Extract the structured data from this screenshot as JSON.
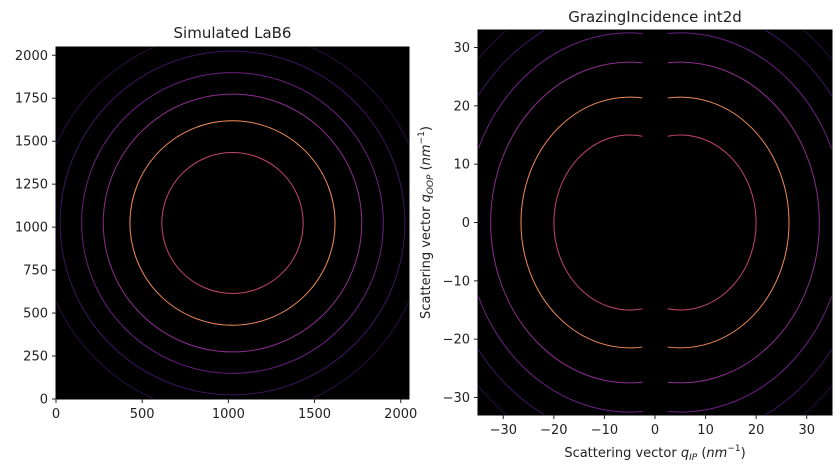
{
  "chart_data": [
    {
      "type": "heatmap",
      "title": "Simulated LaB6",
      "xlabel": "",
      "ylabel": "",
      "xlim": [
        0,
        2048
      ],
      "ylim": [
        0,
        2048
      ],
      "xticks": [
        0,
        500,
        1000,
        1500,
        2000
      ],
      "yticks": [
        0,
        250,
        500,
        750,
        1000,
        1250,
        1500,
        1750,
        2000
      ],
      "background": "#000000",
      "center": [
        1024,
        1024
      ],
      "rings": [
        {
          "radius": 410,
          "color": "#c2466a"
        },
        {
          "radius": 595,
          "color": "#f08a5a"
        },
        {
          "radius": 750,
          "color": "#8c2e8c"
        },
        {
          "radius": 875,
          "color": "#6b2080"
        },
        {
          "radius": 1000,
          "color": "#3d1560"
        },
        {
          "radius": 1120,
          "color": "#27103f"
        }
      ]
    },
    {
      "type": "heatmap",
      "title": "GrazingIncidence int2d",
      "xlabel": "Scattering vector q_IP (nm^-1)",
      "ylabel": "Scattering vector q_OOP (nm^-1)",
      "xlim": [
        -35,
        35
      ],
      "ylim": [
        -33,
        33
      ],
      "xticks": [
        -30,
        -20,
        -10,
        0,
        10,
        20,
        30
      ],
      "yticks": [
        -30,
        -20,
        -10,
        0,
        10,
        20,
        30
      ],
      "background": "#000000",
      "center": [
        0,
        0
      ],
      "missing_wedge_qip": 2.5,
      "rings": [
        {
          "radius": 15.0,
          "color": "#c2466a"
        },
        {
          "radius": 21.5,
          "color": "#f08a5a"
        },
        {
          "radius": 27.5,
          "color": "#8c2e8c"
        },
        {
          "radius": 32.5,
          "color": "#6b2080"
        },
        {
          "radius": 37.0,
          "color": "#3d1560"
        },
        {
          "radius": 41.0,
          "color": "#27103f"
        }
      ]
    }
  ],
  "plot1": {
    "title": "Simulated LaB6",
    "xtick_labels": [
      "0",
      "500",
      "1000",
      "1500",
      "2000"
    ],
    "ytick_labels": [
      "0",
      "250",
      "500",
      "750",
      "1000",
      "1250",
      "1500",
      "1750",
      "2000"
    ]
  },
  "plot2": {
    "title": "GrazingIncidence int2d",
    "xlabel_main": "Scattering vector ",
    "xlabel_sym": "q",
    "xlabel_sub": "IP",
    "xlabel_unit_open": " (",
    "xlabel_unit": "nm",
    "xlabel_exp": "−1",
    "xlabel_unit_close": ")",
    "ylabel_main": "Scattering vector ",
    "ylabel_sym": "q",
    "ylabel_sub": "OOP",
    "ylabel_unit_open": " (",
    "ylabel_unit": "nm",
    "ylabel_exp": "−1",
    "ylabel_unit_close": ")",
    "xtick_labels": [
      "−30",
      "−20",
      "−10",
      "0",
      "10",
      "20",
      "30"
    ],
    "ytick_labels": [
      "−30",
      "−20",
      "−10",
      "0",
      "10",
      "20",
      "30"
    ]
  }
}
